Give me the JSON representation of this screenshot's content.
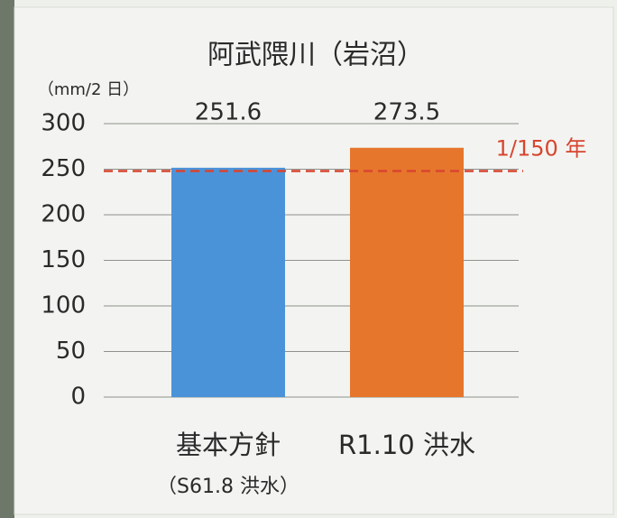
{
  "chart_data": {
    "type": "bar",
    "title": "阿武隈川（岩沼）",
    "y_label": "（mm/2 日）",
    "categories": [
      "基本方針",
      "R1.10 洪水"
    ],
    "category_notes": [
      "（S61.8 洪水）",
      null
    ],
    "values": [
      251.6,
      273.5
    ],
    "colors": [
      "#4b93d9",
      "#e6762c"
    ],
    "ylim": [
      0,
      300
    ],
    "yticks": [
      0,
      50,
      100,
      150,
      200,
      250,
      300
    ],
    "grid": true,
    "reference_line": {
      "value": 248,
      "label": "1/150 年",
      "color": "#d8452f"
    }
  }
}
